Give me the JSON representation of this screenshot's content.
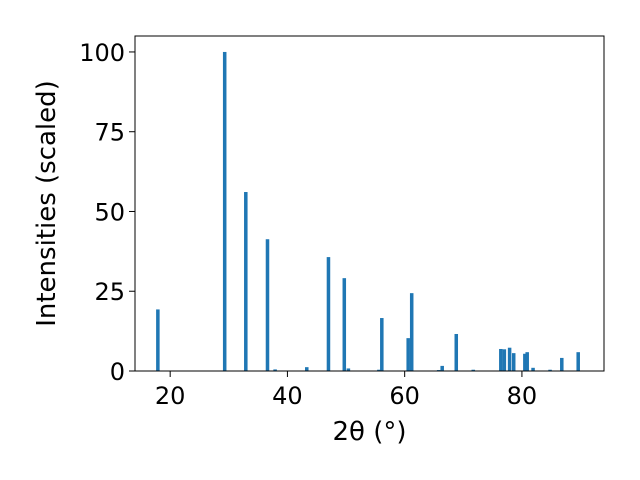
{
  "chart_data": {
    "type": "bar",
    "xlabel": "2θ (°)",
    "ylabel": "Intensities (scaled)",
    "xlim": [
      14.0,
      94.0
    ],
    "ylim": [
      0,
      105
    ],
    "x_ticks": [
      20,
      40,
      60,
      80
    ],
    "y_ticks": [
      0,
      25,
      50,
      75,
      100
    ],
    "grid": false,
    "legend": "none",
    "bar_color": "#1f77b4",
    "bar_width_data": 0.6,
    "x": [
      17.9,
      29.3,
      32.9,
      36.6,
      37.9,
      43.3,
      47.0,
      49.7,
      50.4,
      55.6,
      56.1,
      60.6,
      61.2,
      65.8,
      66.4,
      68.8,
      71.7,
      76.4,
      77.0,
      77.9,
      78.6,
      80.5,
      80.9,
      81.9,
      84.8,
      86.8,
      89.6
    ],
    "values": [
      19.3,
      100,
      56.1,
      41.3,
      0.5,
      1.2,
      35.7,
      29.1,
      0.8,
      0.4,
      16.6,
      10.3,
      24.4,
      0.3,
      1.6,
      11.6,
      0.4,
      6.9,
      6.8,
      7.3,
      5.6,
      5.4,
      5.9,
      1.0,
      0.4,
      4.1,
      5.9
    ]
  }
}
